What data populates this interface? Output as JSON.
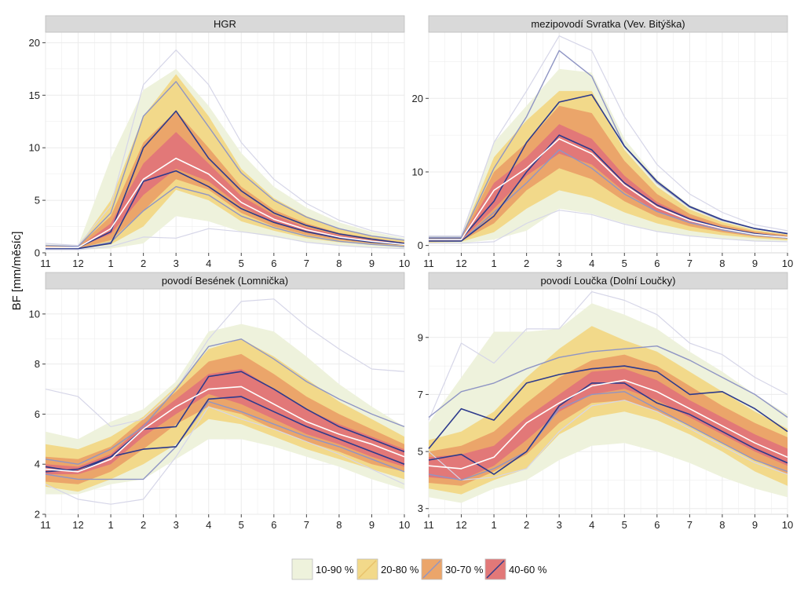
{
  "chart_data": {
    "type": "area",
    "ylabel": "BF [mm/měsíc]",
    "xlabel": "",
    "x_months": [
      "11",
      "12",
      "1",
      "2",
      "3",
      "4",
      "5",
      "6",
      "7",
      "8",
      "9",
      "10"
    ],
    "legend": [
      {
        "label": "10-90 %",
        "fill": "#eef2dc",
        "line": "none"
      },
      {
        "label": "20-80 %",
        "fill": "#f2d98a",
        "line": "#e8c26a"
      },
      {
        "label": "30-70 %",
        "fill": "#eba56a",
        "line": "#8f95c4"
      },
      {
        "label": "40-60 %",
        "fill": "#e27878",
        "line": "#2d3a8c"
      }
    ],
    "colors": {
      "panel_bg": "#ffffff",
      "grid": "#ebebeb",
      "strip_bg": "#d9d9d9",
      "band_10_90": "#eef2dc",
      "band_20_80": "#f2d98a",
      "band_30_70": "#eba56a",
      "band_40_60": "#e27878",
      "line_10_90": "#d6d6e8",
      "line_30_70": "#8f95c4",
      "line_40_60": "#2d3a8c",
      "median": "#ffffff"
    },
    "panels": [
      {
        "title": "HGR",
        "ylim": [
          0,
          21
        ],
        "yticks": [
          0,
          5,
          10,
          15,
          20
        ],
        "series": {
          "p10": [
            0.3,
            0.3,
            0.4,
            0.9,
            3.5,
            3.0,
            2.0,
            1.5,
            1.0,
            0.7,
            0.5,
            0.4
          ],
          "p20": [
            0.4,
            0.4,
            0.8,
            2.5,
            6.0,
            5.0,
            3.0,
            2.1,
            1.4,
            1.0,
            0.8,
            0.6
          ],
          "p30": [
            0.5,
            0.4,
            1.2,
            4.0,
            7.0,
            6.0,
            3.8,
            2.5,
            1.7,
            1.2,
            0.9,
            0.7
          ],
          "p40": [
            0.5,
            0.5,
            1.8,
            5.5,
            8.0,
            6.8,
            4.4,
            2.9,
            2.0,
            1.4,
            1.0,
            0.8
          ],
          "p50": [
            0.5,
            0.5,
            2.3,
            7.0,
            9.0,
            7.5,
            4.8,
            3.2,
            2.2,
            1.5,
            1.1,
            0.8
          ],
          "p60": [
            0.6,
            0.5,
            2.8,
            8.5,
            11.5,
            8.5,
            5.4,
            3.6,
            2.4,
            1.7,
            1.2,
            0.9
          ],
          "p70": [
            0.6,
            0.6,
            3.5,
            10.5,
            13.5,
            10.0,
            6.3,
            4.1,
            2.8,
            1.9,
            1.4,
            1.0
          ],
          "p80": [
            0.7,
            0.6,
            5.0,
            13.0,
            17.0,
            13.0,
            8.0,
            5.2,
            3.5,
            2.3,
            1.6,
            1.2
          ],
          "p90": [
            0.8,
            0.7,
            9.0,
            15.5,
            17.5,
            14.0,
            9.5,
            6.3,
            4.3,
            2.9,
            2.0,
            1.4
          ],
          "line10": [
            0.3,
            0.3,
            0.6,
            1.5,
            1.4,
            2.3,
            2.0,
            1.6,
            1.0,
            0.7,
            0.5,
            0.4
          ],
          "line90": [
            0.9,
            0.7,
            4.5,
            16.0,
            19.3,
            16.0,
            10.5,
            7.0,
            4.7,
            3.1,
            2.1,
            1.5
          ],
          "line30": [
            0.5,
            0.4,
            1.0,
            4.0,
            6.3,
            5.5,
            3.5,
            2.4,
            1.6,
            1.1,
            0.8,
            0.6
          ],
          "line70": [
            0.7,
            0.6,
            3.8,
            13.0,
            16.3,
            12.0,
            7.6,
            5.0,
            3.4,
            2.3,
            1.6,
            1.2
          ],
          "line40": [
            0.4,
            0.4,
            0.9,
            6.8,
            7.8,
            6.3,
            4.2,
            2.9,
            2.0,
            1.4,
            1.0,
            0.8
          ],
          "line60": [
            0.5,
            0.5,
            2.0,
            10.0,
            13.5,
            9.0,
            5.9,
            3.8,
            2.6,
            1.8,
            1.3,
            0.9
          ]
        }
      },
      {
        "title": "mezipovodí Svratka (Vev. Bitýška)",
        "ylim": [
          -1,
          29
        ],
        "yticks": [
          0,
          10,
          20
        ],
        "series": {
          "p10": [
            0.3,
            0.3,
            0.8,
            2.0,
            5.0,
            4.3,
            3.0,
            1.9,
            1.3,
            0.9,
            0.6,
            0.5
          ],
          "p20": [
            0.4,
            0.5,
            1.8,
            5.0,
            7.5,
            6.5,
            4.5,
            3.0,
            2.0,
            1.4,
            1.0,
            0.7
          ],
          "p30": [
            0.6,
            0.6,
            3.0,
            7.5,
            10.5,
            9.0,
            6.0,
            3.9,
            2.6,
            1.8,
            1.2,
            0.9
          ],
          "p40": [
            0.7,
            0.7,
            5.0,
            9.5,
            12.5,
            11.0,
            7.3,
            4.6,
            3.0,
            2.1,
            1.4,
            1.0
          ],
          "p50": [
            0.8,
            0.8,
            7.5,
            10.5,
            14.5,
            12.5,
            8.2,
            5.2,
            3.4,
            2.3,
            1.5,
            1.1
          ],
          "p60": [
            0.9,
            0.9,
            8.5,
            12.0,
            16.5,
            14.5,
            9.5,
            5.9,
            3.8,
            2.5,
            1.7,
            1.2
          ],
          "p70": [
            1.0,
            1.0,
            10.0,
            14.0,
            19.0,
            18.0,
            11.5,
            7.0,
            4.3,
            2.8,
            1.9,
            1.4
          ],
          "p80": [
            1.1,
            1.1,
            12.0,
            17.0,
            21.0,
            21.0,
            13.0,
            8.0,
            4.9,
            3.2,
            2.1,
            1.5
          ],
          "p90": [
            1.3,
            1.3,
            14.0,
            19.0,
            24.0,
            23.5,
            14.5,
            9.0,
            5.5,
            3.6,
            2.4,
            1.7
          ],
          "line10": [
            0.3,
            0.3,
            0.5,
            3.0,
            4.8,
            4.2,
            2.9,
            1.9,
            1.3,
            0.9,
            0.6,
            0.5
          ],
          "line90": [
            1.3,
            1.3,
            14.0,
            21.0,
            28.5,
            26.5,
            17.5,
            11.0,
            7.0,
            4.5,
            2.8,
            2.0
          ],
          "line30": [
            0.6,
            0.6,
            4.5,
            8.5,
            13.0,
            10.5,
            7.0,
            4.6,
            3.1,
            2.1,
            1.4,
            1.0
          ],
          "line70": [
            1.1,
            1.1,
            10.5,
            17.5,
            26.5,
            23.0,
            13.5,
            8.5,
            5.2,
            3.4,
            2.3,
            1.6
          ],
          "line40": [
            0.6,
            0.6,
            4.0,
            10.0,
            15.0,
            13.0,
            8.5,
            5.5,
            3.6,
            2.4,
            1.6,
            1.1
          ],
          "line60": [
            0.9,
            0.9,
            6.0,
            14.0,
            19.5,
            20.5,
            13.5,
            8.7,
            5.3,
            3.5,
            2.3,
            1.6
          ]
        }
      },
      {
        "title": "povodí Besének (Lomnička)",
        "ylim": [
          2,
          11
        ],
        "yticks": [
          2,
          4,
          6,
          8,
          10
        ],
        "series": {
          "p10": [
            2.8,
            2.8,
            3.2,
            3.4,
            4.2,
            5.0,
            5.0,
            4.7,
            4.3,
            3.9,
            3.4,
            3.0
          ],
          "p20": [
            3.1,
            2.9,
            3.4,
            4.0,
            4.8,
            5.8,
            5.6,
            5.1,
            4.6,
            4.2,
            3.8,
            3.4
          ],
          "p30": [
            3.3,
            3.2,
            3.7,
            4.6,
            5.6,
            6.3,
            6.0,
            5.4,
            4.9,
            4.5,
            4.0,
            3.7
          ],
          "p40": [
            3.6,
            3.6,
            4.0,
            5.1,
            6.0,
            6.8,
            6.4,
            5.8,
            5.2,
            4.8,
            4.3,
            3.9
          ],
          "p50": [
            3.8,
            3.7,
            4.2,
            5.4,
            6.3,
            7.0,
            7.1,
            6.4,
            5.7,
            5.2,
            4.8,
            4.3
          ],
          "p60": [
            4.0,
            3.9,
            4.4,
            5.6,
            6.6,
            7.6,
            7.8,
            7.0,
            6.2,
            5.6,
            5.1,
            4.6
          ],
          "p70": [
            4.3,
            4.2,
            4.7,
            5.8,
            6.9,
            8.1,
            8.4,
            7.6,
            6.7,
            6.0,
            5.4,
            4.8
          ],
          "p80": [
            4.8,
            4.6,
            5.1,
            5.9,
            7.1,
            8.6,
            9.0,
            8.3,
            7.4,
            6.5,
            5.8,
            5.1
          ],
          "p90": [
            5.3,
            5.0,
            5.7,
            6.2,
            7.3,
            9.3,
            9.6,
            9.3,
            8.3,
            7.2,
            6.3,
            5.5
          ],
          "line10": [
            3.2,
            2.6,
            2.4,
            2.6,
            4.3,
            6.3,
            5.8,
            5.4,
            4.9,
            4.4,
            3.8,
            3.2
          ],
          "line90": [
            7.0,
            6.7,
            5.5,
            5.8,
            7.0,
            9.0,
            10.5,
            10.6,
            9.5,
            8.6,
            7.8,
            7.7
          ],
          "line30": [
            3.6,
            3.4,
            3.4,
            3.4,
            4.7,
            6.5,
            6.1,
            5.6,
            5.1,
            4.7,
            4.2,
            3.7
          ],
          "line70": [
            4.2,
            4.0,
            4.6,
            5.5,
            7.0,
            8.7,
            9.0,
            8.2,
            7.3,
            6.6,
            6.0,
            5.5
          ],
          "line40": [
            3.7,
            3.8,
            4.3,
            4.6,
            4.7,
            6.6,
            6.7,
            6.1,
            5.5,
            5.0,
            4.5,
            4.0
          ],
          "line60": [
            3.9,
            3.7,
            4.3,
            5.4,
            5.5,
            7.5,
            7.7,
            7.0,
            6.2,
            5.5,
            5.0,
            4.5
          ]
        }
      },
      {
        "title": "povodí Loučka (Dolní Loučky)",
        "ylim": [
          2.8,
          10.7
        ],
        "yticks": [
          3,
          5,
          7,
          9
        ],
        "series": {
          "p10": [
            3.4,
            3.2,
            3.7,
            4.0,
            4.7,
            5.2,
            5.3,
            5.0,
            4.6,
            4.1,
            3.7,
            3.4
          ],
          "p20": [
            3.7,
            3.5,
            4.0,
            4.4,
            5.6,
            6.2,
            6.4,
            6.1,
            5.6,
            5.0,
            4.3,
            3.8
          ],
          "p30": [
            3.9,
            3.8,
            4.3,
            4.9,
            6.0,
            6.7,
            6.8,
            6.4,
            5.9,
            5.3,
            4.7,
            4.2
          ],
          "p40": [
            4.1,
            4.0,
            4.5,
            5.4,
            6.4,
            7.0,
            7.2,
            6.8,
            6.2,
            5.6,
            5.0,
            4.5
          ],
          "p50": [
            4.5,
            4.4,
            4.8,
            6.0,
            6.7,
            7.3,
            7.5,
            7.1,
            6.5,
            5.9,
            5.3,
            4.8
          ],
          "p60": [
            4.8,
            4.9,
            5.2,
            6.2,
            7.0,
            7.8,
            7.9,
            7.5,
            6.8,
            6.2,
            5.6,
            5.1
          ],
          "p70": [
            5.0,
            5.2,
            5.7,
            6.7,
            7.6,
            8.2,
            8.4,
            8.0,
            7.3,
            6.6,
            6.0,
            5.5
          ],
          "p80": [
            5.4,
            5.7,
            6.4,
            7.6,
            8.6,
            9.4,
            8.9,
            8.5,
            7.8,
            7.1,
            6.4,
            5.8
          ],
          "p90": [
            6.0,
            7.6,
            9.2,
            9.2,
            9.3,
            10.2,
            9.8,
            9.3,
            8.5,
            7.8,
            7.0,
            6.3
          ],
          "line10": [
            5.0,
            4.0,
            4.1,
            4.4,
            5.7,
            6.6,
            6.8,
            6.4,
            5.8,
            5.2,
            4.6,
            4.2
          ],
          "line90": [
            6.1,
            8.8,
            8.1,
            9.3,
            9.3,
            10.6,
            10.3,
            9.8,
            8.8,
            8.4,
            7.6,
            7.0
          ],
          "line30": [
            4.2,
            4.0,
            4.4,
            5.0,
            6.5,
            7.0,
            7.1,
            6.5,
            5.9,
            5.3,
            4.7,
            4.3
          ],
          "line70": [
            6.2,
            7.1,
            7.4,
            7.9,
            8.3,
            8.5,
            8.6,
            8.7,
            8.2,
            7.6,
            7.0,
            6.2
          ],
          "line40": [
            4.7,
            4.9,
            4.2,
            5.0,
            6.6,
            7.4,
            7.4,
            6.7,
            6.3,
            5.7,
            5.1,
            4.6
          ],
          "line60": [
            5.1,
            6.5,
            6.1,
            7.4,
            7.7,
            7.9,
            8.0,
            7.8,
            7.0,
            7.1,
            6.5,
            5.7
          ]
        }
      }
    ]
  }
}
